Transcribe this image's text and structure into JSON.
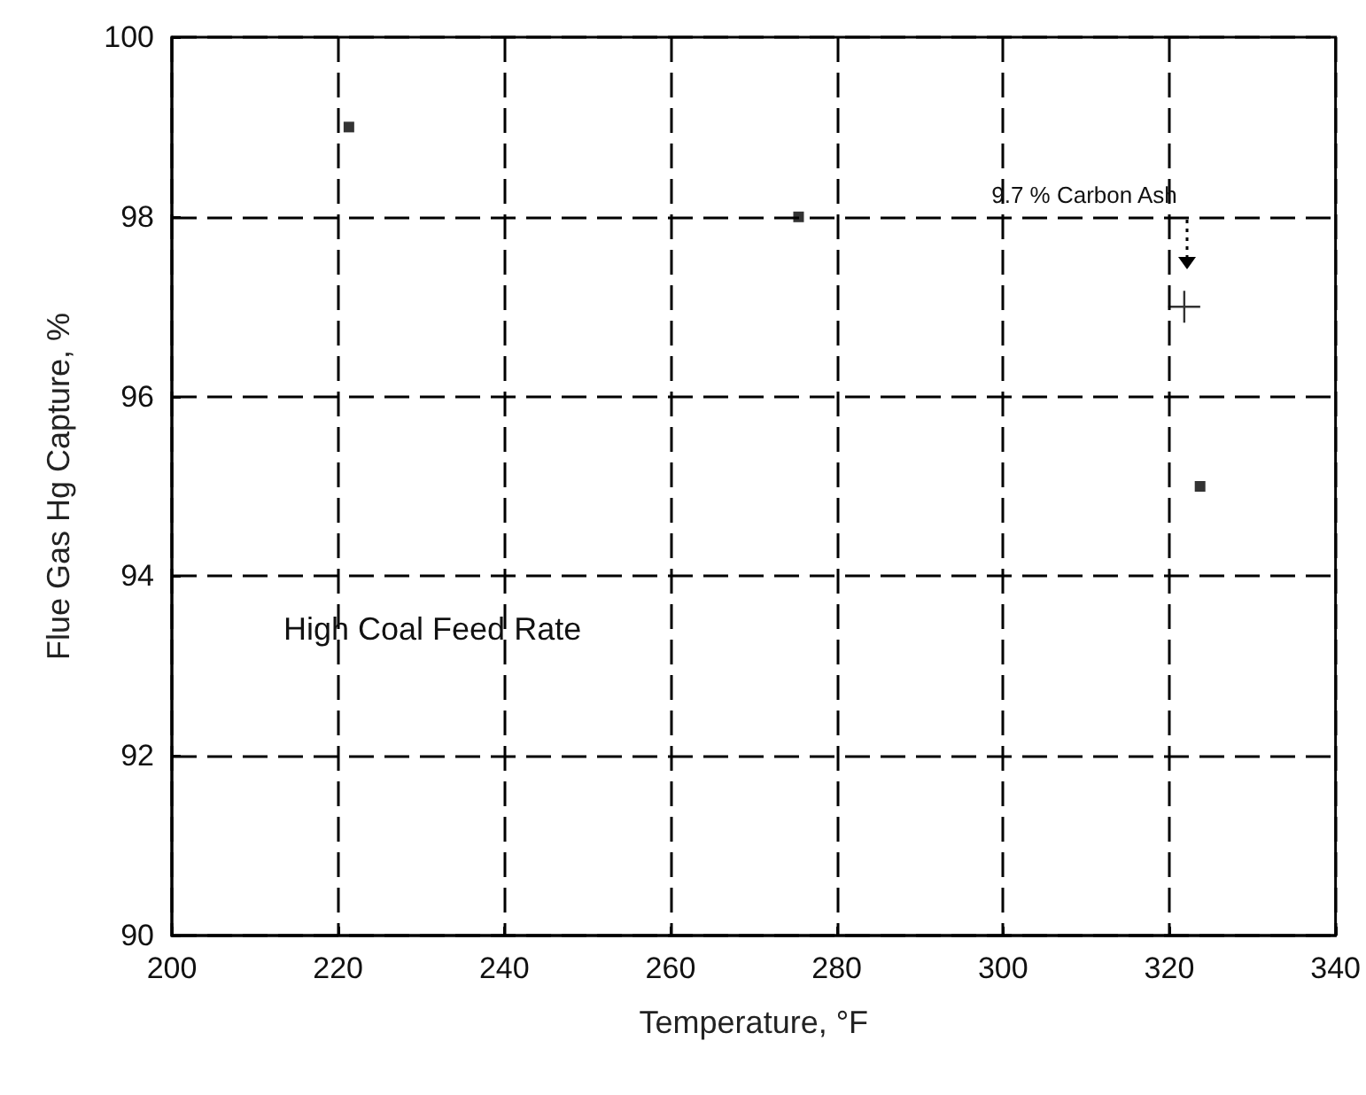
{
  "chart_data": {
    "type": "scatter",
    "xlabel": "Temperature, °F",
    "ylabel": "Flue Gas Hg Capture, %",
    "xlim": [
      200,
      340
    ],
    "xticks": [
      200,
      220,
      240,
      260,
      280,
      300,
      320,
      340
    ],
    "ylim": [
      90,
      100
    ],
    "yticks": [
      90,
      92,
      94,
      96,
      98,
      100
    ],
    "grid": true,
    "series": [
      {
        "color": "#000000",
        "marker": "square",
        "x": [
          221.3,
          275.4,
          323.7
        ],
        "values": [
          99,
          98,
          95
        ]
      },
      {
        "color": "#000000",
        "marker": "cross",
        "x": [
          321.8
        ],
        "values": [
          97
        ]
      }
    ],
    "annotations": [
      "9.7 % Carbon Ash",
      "High Coal Feed Rate"
    ]
  }
}
